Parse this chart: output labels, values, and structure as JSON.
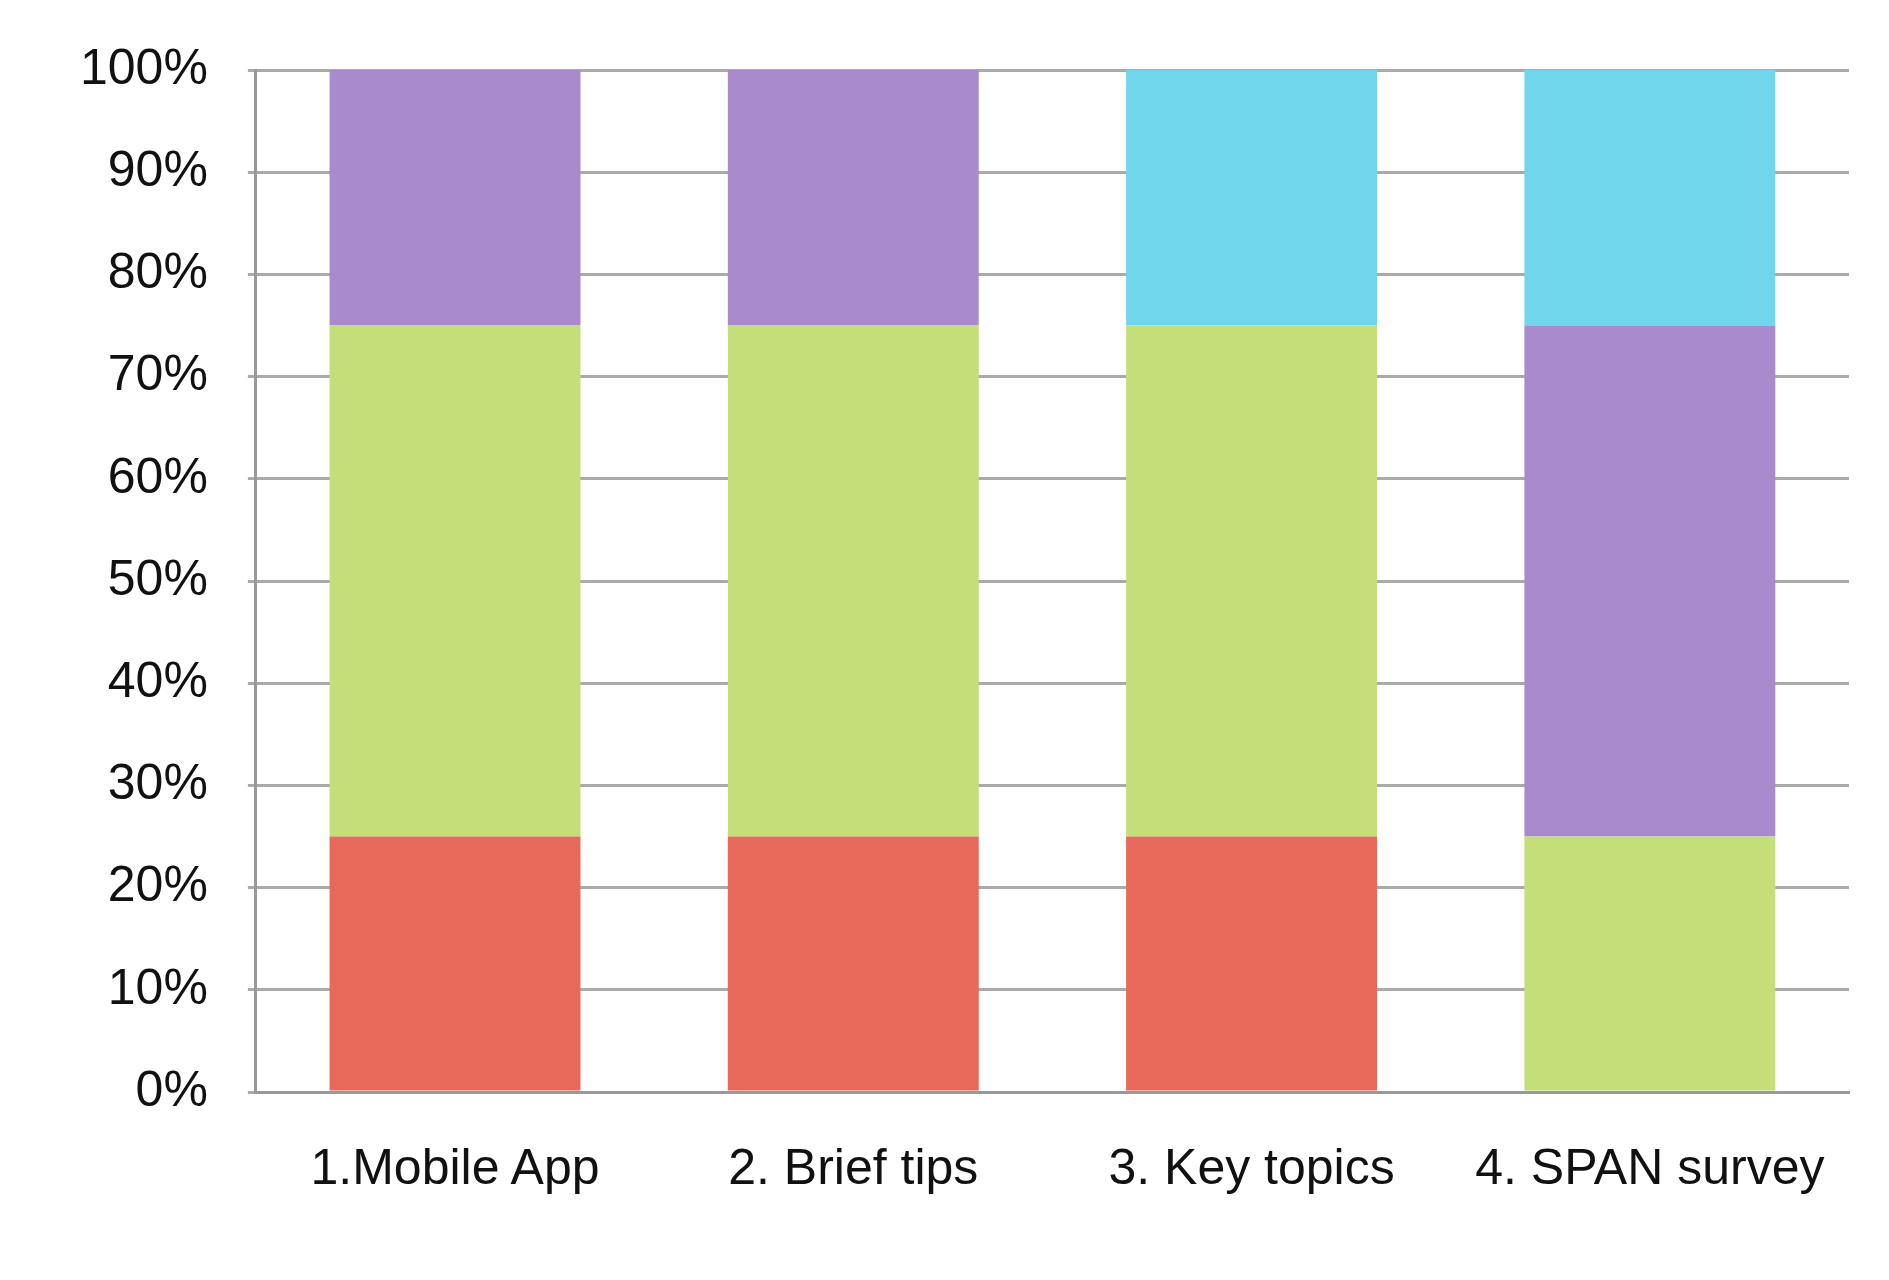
{
  "chart_data": {
    "type": "bar",
    "stacked": true,
    "categories": [
      "1.Mobile App",
      "2. Brief tips",
      "3. Key topics",
      "4. SPAN survey"
    ],
    "series": [
      {
        "color": "#e8685a",
        "values": [
          25,
          25,
          25,
          null
        ]
      },
      {
        "color": "#c4de7a",
        "values": [
          50,
          50,
          50,
          25
        ]
      },
      {
        "color": "#a98bcd",
        "values": [
          25,
          25,
          null,
          50
        ]
      },
      {
        "color": "#6fd6ec",
        "values": [
          null,
          null,
          25,
          25
        ]
      }
    ],
    "ylim": [
      0,
      100
    ],
    "yticks": [
      {
        "value": 0,
        "label": "0%"
      },
      {
        "value": 10,
        "label": "10%"
      },
      {
        "value": 20,
        "label": "20%"
      },
      {
        "value": 30,
        "label": "30%"
      },
      {
        "value": 40,
        "label": "40%"
      },
      {
        "value": 50,
        "label": "50%"
      },
      {
        "value": 60,
        "label": "60%"
      },
      {
        "value": 70,
        "label": "70%"
      },
      {
        "value": 80,
        "label": "80%"
      },
      {
        "value": 90,
        "label": "90%"
      },
      {
        "value": 100,
        "label": "100%"
      }
    ],
    "grid": "y"
  }
}
